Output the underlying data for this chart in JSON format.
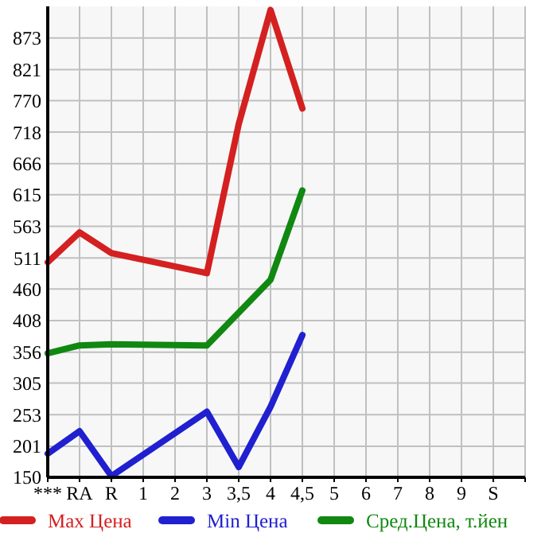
{
  "chart_data": {
    "type": "line",
    "categories": [
      "***",
      "RA",
      "R",
      "1",
      "2",
      "3",
      "3,5",
      "4",
      "4,5",
      "5",
      "6",
      "7",
      "8",
      "9",
      "S"
    ],
    "ylim": [
      150,
      925
    ],
    "yticks": [
      150,
      201,
      253,
      305,
      356,
      408,
      460,
      511,
      563,
      615,
      666,
      718,
      770,
      821,
      873
    ],
    "grid": true,
    "legend": "bottom",
    "marker": "none",
    "series": [
      {
        "name": "Max Цена",
        "color": "#d42020",
        "values": [
          504,
          553,
          519,
          null,
          null,
          486,
          731,
          919,
          757,
          null,
          null,
          null,
          null,
          null,
          null
        ]
      },
      {
        "name": "Min Цена",
        "color": "#2020d0",
        "values": [
          189,
          226,
          152,
          null,
          null,
          258,
          167,
          266,
          384,
          null,
          null,
          null,
          null,
          null,
          null
        ]
      },
      {
        "name": "Сред.Цена, т.йен",
        "color": "#118811",
        "values": [
          354,
          367,
          369,
          null,
          null,
          367,
          421,
          475,
          622,
          null,
          null,
          null,
          null,
          null,
          null
        ]
      }
    ]
  }
}
